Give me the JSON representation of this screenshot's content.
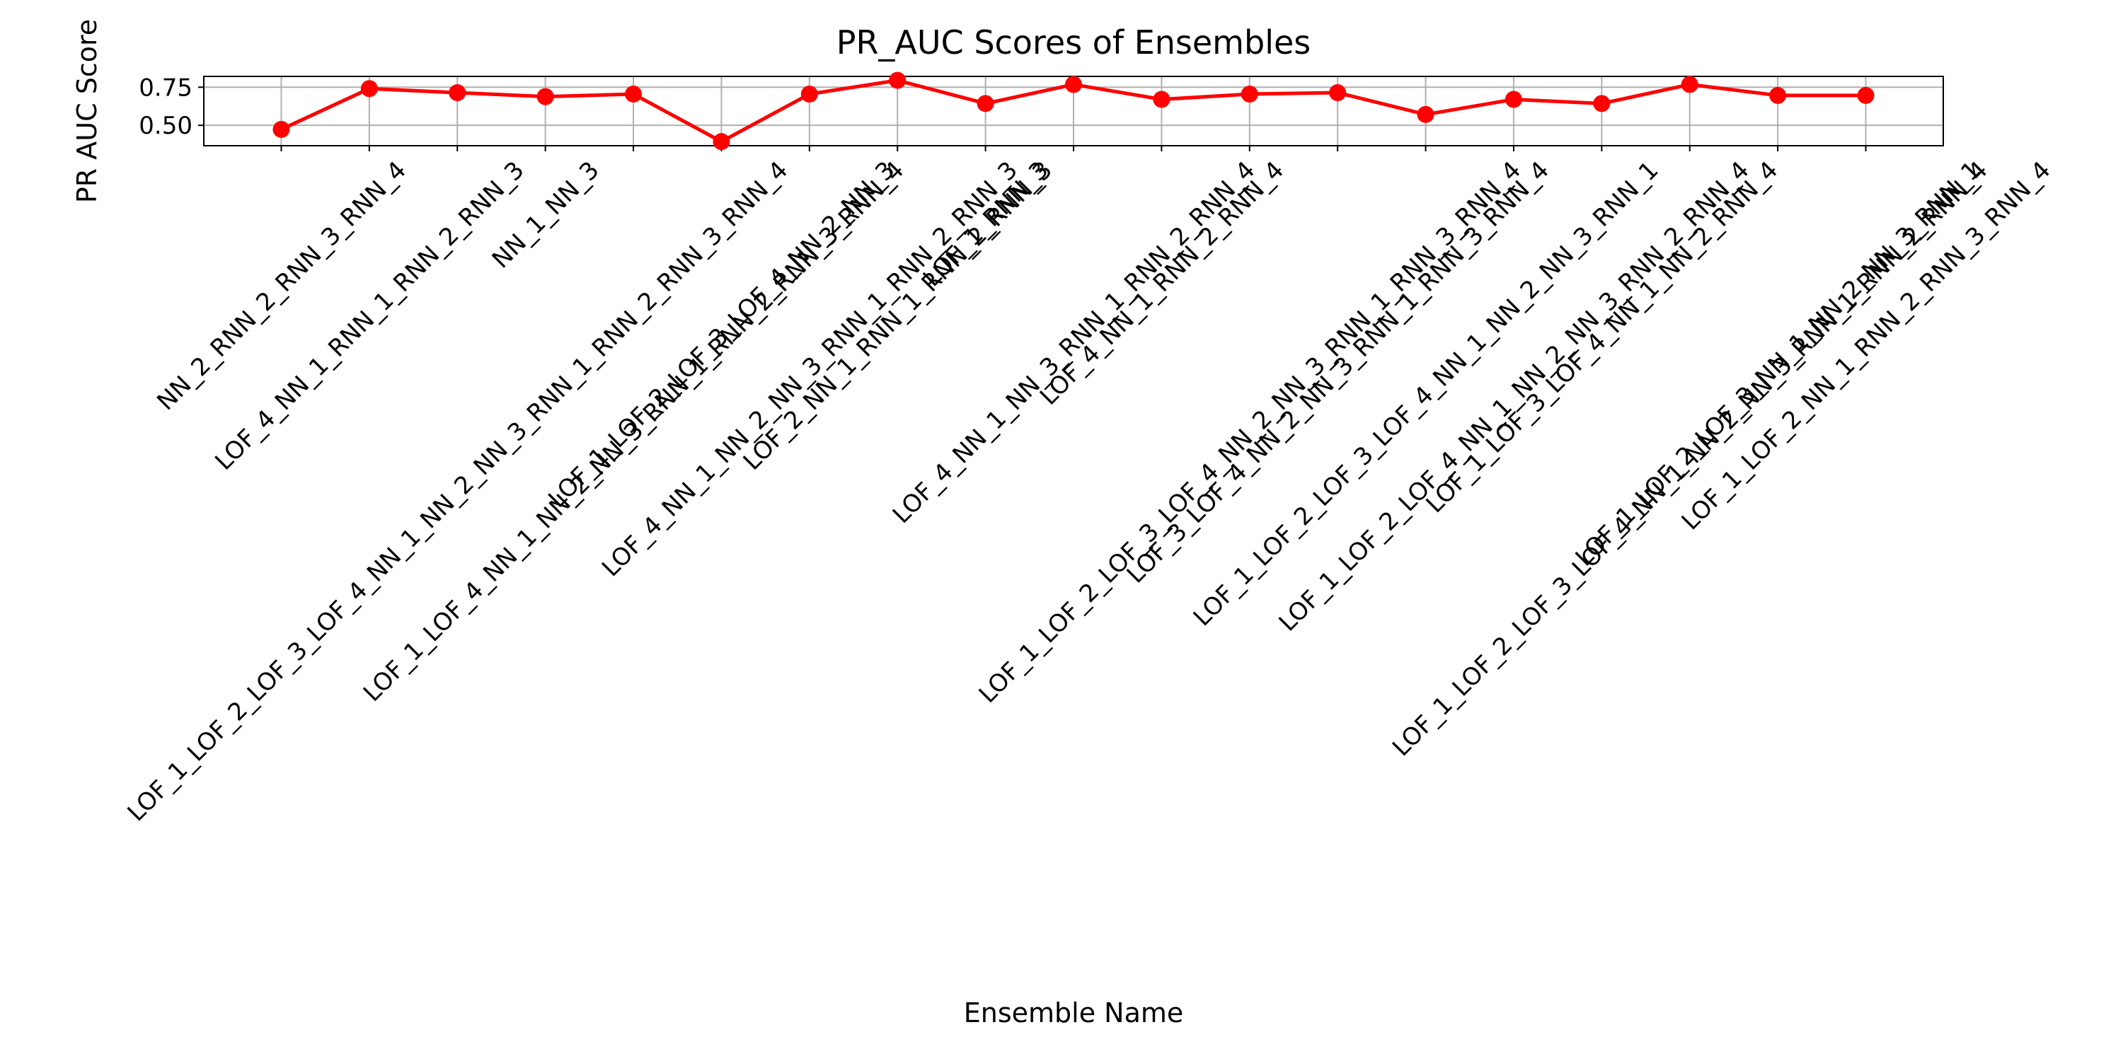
{
  "chart_data": {
    "type": "line",
    "title": "PR_AUC Scores of Ensembles",
    "xlabel": "Ensemble Name",
    "ylabel": "PR AUC Score",
    "categories": [
      "NN_2_RNN_2_RNN_3_RNN_4",
      "LOF_4_NN_1_RNN_1_RNN_2_RNN_3",
      "LOF_1_LOF_2_LOF_3_LOF_4_NN_1_NN_2_NN_3_RNN_1_RNN_2_RNN_3_RNN_4",
      "NN_1_NN_3",
      "LOF_1_LOF_4_NN_1_NN_2_NN_3_RNN_1_RNN_2_RNN_3_RNN_4",
      "LOF_1_LOF_2_LOF_3_LOF_4_NN_2_NN_3",
      "LOF_4_NN_1_NN_2_NN_3_RNN_1_RNN_2_RNN_3",
      "LOF_2_NN_1_RNN_1_RNN_2_RNN_3",
      "LOF_1_RNN_3",
      "LOF_4_NN_1_NN_3_RNN_1_RNN_2_RNN_4",
      "LOF_4_NN_1_RNN_2_RNN_4",
      "LOF_1_LOF_2_LOF_3_LOF_4_NN_2_NN_3_RNN_1_RNN_3_RNN_4",
      "LOF_3_LOF_4_NN_2_NN_3_RNN_1_RNN_3_RNN_4",
      "LOF_1_LOF_2_LOF_3_LOF_4_NN_1_NN_2_NN_3_RNN_1",
      "LOF_1_LOF_2_LOF_4_NN_1_NN_2_NN_3_RNN_2_RNN_4",
      "LOF_1_LOF_3_LOF_4_NN_1_NN_2_RNN_4",
      "LOF_1_LOF_2_LOF_3_LOF_4_NN_1_NN_2_NN_3_RNN_1_RNN_2_RNN_4",
      "LOF_1_LOF_2_LOF_3_NN_1_NN_2_NN_3_RNN_1",
      "LOF_1_LOF_2_NN_1_RNN_2_RNN_3_RNN_4"
    ],
    "values": [
      0.473,
      0.741,
      0.714,
      0.688,
      0.705,
      0.393,
      0.705,
      0.795,
      0.643,
      0.768,
      0.67,
      0.705,
      0.714,
      0.571,
      0.67,
      0.643,
      0.768,
      0.696,
      0.696
    ],
    "color": "#ff0000",
    "ylim": [
      0.366,
      0.821
    ],
    "yticks": [
      {
        "value": 0.5,
        "label": "0.50"
      },
      {
        "value": 0.75,
        "label": "0.75"
      }
    ],
    "grid": true
  }
}
